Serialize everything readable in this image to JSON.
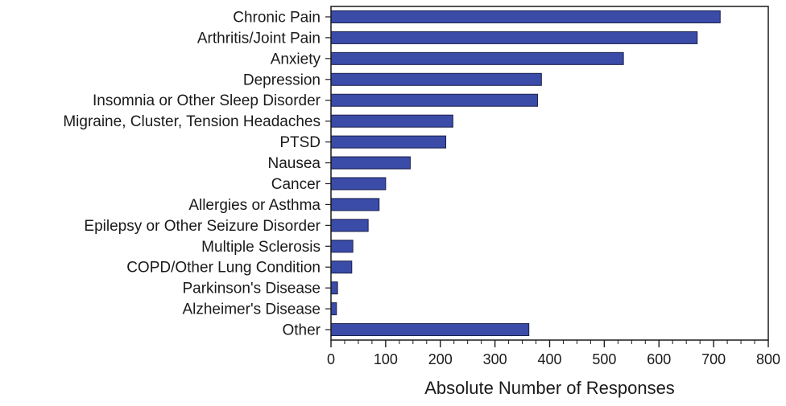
{
  "chart_data": {
    "type": "bar",
    "orientation": "horizontal",
    "categories": [
      "Chronic Pain",
      "Arthritis/Joint Pain",
      "Anxiety",
      "Depression",
      "Insomnia or Other Sleep Disorder",
      "Migraine, Cluster, Tension Headaches",
      "PTSD",
      "Nausea",
      "Cancer",
      "Allergies or Asthma",
      "Epilepsy or Other Seizure Disorder",
      "Multiple Sclerosis",
      "COPD/Other Lung Condition",
      "Parkinson's Disease",
      "Alzheimer's Disease",
      "Other"
    ],
    "values": [
      712,
      670,
      535,
      385,
      378,
      223,
      210,
      145,
      100,
      88,
      68,
      40,
      38,
      12,
      10,
      362
    ],
    "title": "",
    "xlabel": "Absolute Number of Responses",
    "ylabel": "",
    "xlim": [
      0,
      800
    ],
    "xticks": [
      "0",
      "100",
      "200",
      "300",
      "400",
      "500",
      "600",
      "700",
      "800"
    ],
    "minor_tick_step": 25,
    "grid": false,
    "legend": "none",
    "bar_color": "#3a4ba8",
    "bar_edge_color": "#1a1f4a"
  }
}
